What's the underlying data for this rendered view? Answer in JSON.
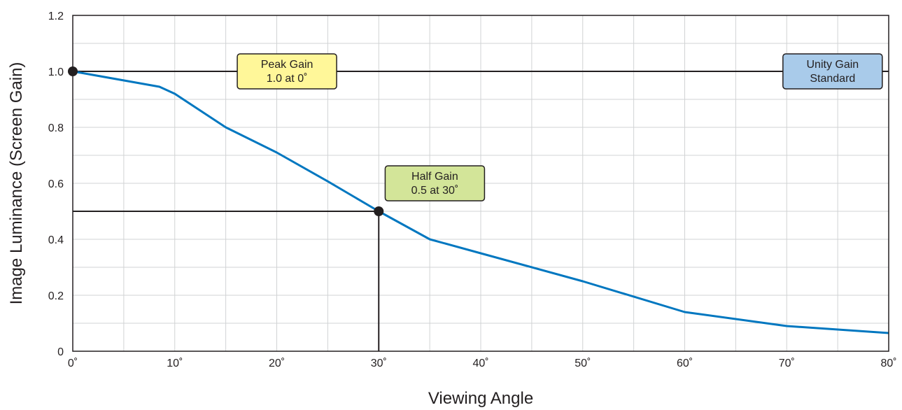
{
  "chart_data": {
    "type": "line",
    "title": "",
    "xlabel": "Viewing Angle",
    "ylabel": "Image Luminance (Screen Gain)",
    "xlim": [
      0,
      80
    ],
    "ylim": [
      0,
      1.2
    ],
    "x_ticks": [
      "0˚",
      "10˚",
      "20˚",
      "30˚",
      "40˚",
      "50˚",
      "60˚",
      "70˚",
      "80˚"
    ],
    "y_ticks": [
      "0",
      "0.2",
      "0.4",
      "0.6",
      "0.8",
      "1.0",
      "1.2"
    ],
    "grid": true,
    "series": [
      {
        "color": "#0077c0",
        "x": [
          0,
          8.5,
          10,
          15,
          20,
          25,
          30,
          35,
          40,
          50,
          60,
          70,
          80
        ],
        "y": [
          1.0,
          0.945,
          0.92,
          0.8,
          0.71,
          0.607,
          0.5,
          0.4,
          0.35,
          0.25,
          0.14,
          0.09,
          0.065
        ]
      }
    ],
    "reference_lines": [
      {
        "orientation": "horizontal",
        "y": 1.0,
        "x_from": 0,
        "x_to": 80,
        "color": "#231f20"
      },
      {
        "orientation": "horizontal",
        "y": 0.5,
        "x_from": 0,
        "x_to": 30,
        "color": "#231f20"
      },
      {
        "orientation": "vertical",
        "x": 30,
        "y_from": 0,
        "y_to": 0.5,
        "color": "#231f20"
      }
    ],
    "markers": [
      {
        "x": 0,
        "y": 1.0,
        "color": "#231f20"
      },
      {
        "x": 30,
        "y": 0.5,
        "color": "#231f20"
      }
    ],
    "annotations": [
      {
        "name": "peak-gain",
        "lines": [
          "Peak Gain",
          "1.0 at 0˚"
        ],
        "x": 21,
        "y": 1.0,
        "fill": "#fff799"
      },
      {
        "name": "unity-gain",
        "lines": [
          "Unity Gain",
          "Standard"
        ],
        "x": 74.5,
        "y": 1.0,
        "fill": "#a9cbea"
      },
      {
        "name": "half-gain",
        "lines": [
          "Half Gain",
          "0.5 at 30˚"
        ],
        "x": 35.5,
        "y": 0.6,
        "fill": "#d3e599"
      }
    ]
  }
}
